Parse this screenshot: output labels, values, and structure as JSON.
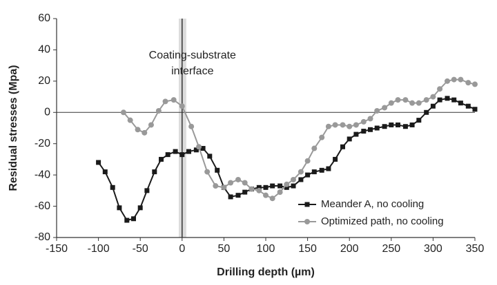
{
  "chart_data": {
    "type": "line",
    "xlabel": "Drilling depth (µm)",
    "ylabel": "Residual stresses (Mpa)",
    "annotation": "Coating-substrate interface",
    "annotation_lines": [
      "Coating-substrate",
      "interface"
    ],
    "shaded_region": [
      -4,
      5
    ],
    "interface_x": 0,
    "xlim": [
      -150,
      350
    ],
    "xticks": [
      -150,
      -100,
      -50,
      0,
      50,
      100,
      150,
      200,
      250,
      300,
      350
    ],
    "ylim": [
      -80,
      60
    ],
    "yticks": [
      -80,
      -60,
      -40,
      -20,
      0,
      20,
      40,
      60
    ],
    "legend": "lower right",
    "series": [
      {
        "name": "Meander A, no cooling",
        "color": "#1a1a1a",
        "marker": "square",
        "x": [
          -100,
          -92,
          -83,
          -75,
          -66,
          -58,
          -50,
          -42,
          -33,
          -25,
          -17,
          -8,
          0,
          8,
          17,
          25,
          33,
          42,
          50,
          58,
          67,
          75,
          83,
          92,
          100,
          108,
          117,
          125,
          133,
          142,
          150,
          158,
          167,
          175,
          183,
          192,
          200,
          208,
          217,
          225,
          233,
          242,
          250,
          258,
          267,
          275,
          283,
          292,
          300,
          308,
          317,
          325,
          333,
          342,
          350
        ],
        "values": [
          -32,
          -38,
          -48,
          -61,
          -69,
          -68,
          -61,
          -50,
          -38,
          -30,
          -27,
          -25,
          -27,
          -25,
          -24,
          -23,
          -28,
          -37,
          -48,
          -54,
          -53,
          -51,
          -49,
          -48,
          -48,
          -47,
          -47,
          -48,
          -47,
          -43,
          -40,
          -38,
          -37,
          -36,
          -30,
          -22,
          -17,
          -14,
          -12,
          -11,
          -10,
          -9,
          -8,
          -8,
          -9,
          -8,
          -5,
          0,
          4,
          8,
          9,
          8,
          6,
          4,
          2
        ]
      },
      {
        "name": "Optimized path, no cooling",
        "color": "#999999",
        "marker": "circle",
        "x": [
          -70,
          -62,
          -53,
          -45,
          -37,
          -28,
          -20,
          -10,
          0,
          11,
          20,
          30,
          40,
          50,
          58,
          67,
          75,
          83,
          92,
          100,
          108,
          117,
          125,
          133,
          142,
          150,
          158,
          167,
          175,
          183,
          192,
          200,
          208,
          217,
          225,
          233,
          242,
          250,
          258,
          267,
          275,
          283,
          292,
          300,
          308,
          317,
          325,
          333,
          342,
          350
        ],
        "values": [
          0,
          -5,
          -11,
          -13,
          -8,
          1,
          7,
          8,
          4,
          -9,
          -22,
          -38,
          -47,
          -48,
          -45,
          -43,
          -45,
          -49,
          -50,
          -53,
          -55,
          -51,
          -46,
          -43,
          -38,
          -31,
          -23,
          -16,
          -9,
          -8,
          -8,
          -9,
          -8,
          -6,
          -4,
          1,
          3,
          6,
          8,
          8,
          6,
          6,
          8,
          10,
          15,
          20,
          21,
          21,
          19,
          18
        ]
      }
    ]
  }
}
